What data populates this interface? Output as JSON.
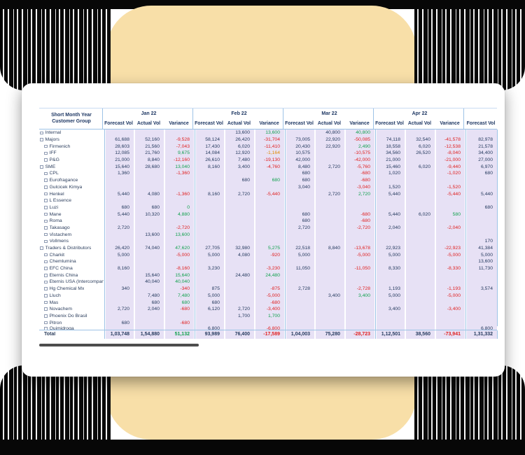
{
  "colors": {
    "panel_tan": "#F8DFA8",
    "cell_lavender": "#E7E1F5",
    "header_navy": "#1F3864",
    "separator_blue": "#9DC3E6",
    "variance_negative": "#E01F1F",
    "variance_positive": "#11A14E",
    "variance_warning": "#E08A00"
  },
  "table": {
    "corner_title_line1": "Short Month Year",
    "corner_title_line2": "Customer Group",
    "months": [
      "Jan 22",
      "Feb 22",
      "Mar 22",
      "Apr 22"
    ],
    "measure_headers": [
      "Forecast Vol",
      "Actual Vol",
      "Variance"
    ],
    "trailing_header": "Forecast Vol",
    "variance_amber": [
      "-1,164"
    ],
    "rows": [
      {
        "label": "Internal",
        "level": 0,
        "cells": [
          "",
          "",
          "",
          "",
          "13,600",
          "13,600",
          "",
          "40,800",
          "40,800",
          "",
          "",
          "",
          ""
        ]
      },
      {
        "label": "Majors",
        "level": 0,
        "cells": [
          "61,688",
          "52,160",
          "-9,528",
          "58,124",
          "26,420",
          "-31,704",
          "73,005",
          "22,920",
          "-50,085",
          "74,118",
          "32,540",
          "-41,578",
          "82,978"
        ]
      },
      {
        "label": "Firmenich",
        "level": 1,
        "cells": [
          "28,603",
          "21,560",
          "-7,043",
          "17,430",
          "6,020",
          "-11,410",
          "20,430",
          "22,920",
          "2,490",
          "18,558",
          "6,020",
          "-12,538",
          "21,578"
        ]
      },
      {
        "label": "IFF",
        "level": 1,
        "cells": [
          "12,085",
          "21,760",
          "9,675",
          "14,084",
          "12,920",
          "-1,164",
          "10,575",
          "",
          "-10,575",
          "34,560",
          "26,520",
          "-8,040",
          "34,400"
        ]
      },
      {
        "label": "P&G",
        "level": 1,
        "cells": [
          "21,000",
          "8,840",
          "-12,160",
          "26,610",
          "7,480",
          "-19,130",
          "42,000",
          "",
          "-42,000",
          "21,000",
          "",
          "-21,000",
          "27,000"
        ]
      },
      {
        "label": "SME",
        "level": 0,
        "cells": [
          "15,640",
          "28,680",
          "13,040",
          "8,160",
          "3,400",
          "-4,760",
          "8,480",
          "2,720",
          "-5,760",
          "15,460",
          "6,020",
          "-9,440",
          "6,970"
        ]
      },
      {
        "label": "CPL",
        "level": 1,
        "cells": [
          "1,360",
          "",
          "-1,360",
          "",
          "",
          "",
          "680",
          "",
          "-680",
          "1,020",
          "",
          "-1,020",
          "680"
        ]
      },
      {
        "label": "Eurofragance",
        "level": 1,
        "cells": [
          "",
          "",
          "",
          "",
          "680",
          "680",
          "680",
          "",
          "-680",
          "",
          "",
          "",
          ""
        ]
      },
      {
        "label": "Gulcicek Kimya",
        "level": 1,
        "cells": [
          "",
          "",
          "",
          "",
          "",
          "",
          "3,040",
          "",
          "-3,040",
          "1,520",
          "",
          "-1,520",
          ""
        ]
      },
      {
        "label": "Henkel",
        "level": 1,
        "cells": [
          "5,440",
          "4,080",
          "-1,360",
          "8,160",
          "2,720",
          "-5,440",
          "",
          "2,720",
          "2,720",
          "5,440",
          "",
          "-5,440",
          "5,440"
        ]
      },
      {
        "label": "L Essence",
        "level": 1,
        "cells": [
          "",
          "",
          "",
          "",
          "",
          "",
          "",
          "",
          "",
          "",
          "",
          "",
          ""
        ]
      },
      {
        "label": "Luzi",
        "level": 1,
        "cells": [
          "680",
          "680",
          "0",
          "",
          "",
          "",
          "",
          "",
          "",
          "",
          "",
          "",
          "680"
        ]
      },
      {
        "label": "Mane",
        "level": 1,
        "cells": [
          "5,440",
          "10,320",
          "4,880",
          "",
          "",
          "",
          "680",
          "",
          "-680",
          "5,440",
          "6,020",
          "580",
          ""
        ]
      },
      {
        "label": "Roma",
        "level": 1,
        "cells": [
          "",
          "",
          "",
          "",
          "",
          "",
          "680",
          "",
          "-680",
          "",
          "",
          "",
          ""
        ]
      },
      {
        "label": "Takasago",
        "level": 1,
        "cells": [
          "2,720",
          "",
          "-2,720",
          "",
          "",
          "",
          "2,720",
          "",
          "-2,720",
          "2,040",
          "",
          "-2,040",
          ""
        ]
      },
      {
        "label": "Vistachem",
        "level": 1,
        "cells": [
          "",
          "13,600",
          "13,600",
          "",
          "",
          "",
          "",
          "",
          "",
          "",
          "",
          "",
          ""
        ]
      },
      {
        "label": "Vollmens",
        "level": 1,
        "cells": [
          "",
          "",
          "",
          "",
          "",
          "",
          "",
          "",
          "",
          "",
          "",
          "",
          "170"
        ]
      },
      {
        "label": "Traders & Distributors",
        "level": 0,
        "cells": [
          "26,420",
          "74,040",
          "47,620",
          "27,705",
          "32,980",
          "5,275",
          "22,518",
          "8,840",
          "-13,678",
          "22,923",
          "",
          "-22,923",
          "41,384"
        ]
      },
      {
        "label": "Charkit",
        "level": 1,
        "cells": [
          "5,000",
          "",
          "-5,000",
          "5,000",
          "4,080",
          "-920",
          "5,000",
          "",
          "-5,000",
          "5,000",
          "",
          "-5,000",
          "5,000"
        ]
      },
      {
        "label": "Chemlumina",
        "level": 1,
        "cells": [
          "",
          "",
          "",
          "",
          "",
          "",
          "",
          "",
          "",
          "",
          "",
          "",
          "13,600"
        ]
      },
      {
        "label": "EFC China",
        "level": 1,
        "cells": [
          "8,160",
          "",
          "-8,160",
          "3,230",
          "",
          "-3,230",
          "11,050",
          "",
          "-11,050",
          "8,330",
          "",
          "-8,330",
          "11,730"
        ]
      },
      {
        "label": "Eternis China",
        "level": 1,
        "cells": [
          "",
          "15,640",
          "15,640",
          "",
          "24,480",
          "24,480",
          "",
          "",
          "",
          "",
          "",
          "",
          ""
        ]
      },
      {
        "label": "Eternis USA (Intercompany)",
        "level": 1,
        "cells": [
          "",
          "40,040",
          "40,040",
          "",
          "",
          "",
          "",
          "",
          "",
          "",
          "",
          "",
          ""
        ]
      },
      {
        "label": "Hg Chemical Mx",
        "level": 1,
        "cells": [
          "340",
          "",
          "-340",
          "875",
          "",
          "-875",
          "2,728",
          "",
          "-2,728",
          "1,193",
          "",
          "-1,193",
          "3,574"
        ]
      },
      {
        "label": "Lluch",
        "level": 1,
        "cells": [
          "",
          "7,480",
          "7,480",
          "5,000",
          "",
          "-5,000",
          "",
          "3,400",
          "3,400",
          "5,000",
          "",
          "-5,000",
          ""
        ]
      },
      {
        "label": "Mas",
        "level": 1,
        "cells": [
          "",
          "680",
          "680",
          "680",
          "",
          "-680",
          "",
          "",
          "",
          "",
          "",
          "",
          ""
        ]
      },
      {
        "label": "Novachem",
        "level": 1,
        "cells": [
          "2,720",
          "2,040",
          "-680",
          "6,120",
          "2,720",
          "-3,400",
          "",
          "",
          "",
          "3,400",
          "",
          "-3,400",
          ""
        ]
      },
      {
        "label": "Phoenix Do Brasil",
        "level": 1,
        "cells": [
          "",
          "",
          "",
          "",
          "1,700",
          "1,700",
          "",
          "",
          "",
          "",
          "",
          "",
          ""
        ]
      },
      {
        "label": "Pitron",
        "level": 1,
        "cells": [
          "680",
          "",
          "-680",
          "",
          "",
          "",
          "",
          "",
          "",
          "",
          "",
          "",
          ""
        ]
      },
      {
        "label": "Quimidroga",
        "level": 1,
        "clipped": true,
        "cells": [
          "",
          "",
          "",
          "6,800",
          "",
          "-6,800",
          "",
          "",
          "",
          "",
          "",
          "",
          "6,800"
        ]
      }
    ],
    "total": {
      "label": "Total",
      "cells": [
        "1,03,748",
        "1,54,880",
        "51,132",
        "93,989",
        "76,400",
        "-17,589",
        "1,04,003",
        "75,280",
        "-28,723",
        "1,12,501",
        "38,560",
        "-73,941",
        "1,31,332"
      ]
    }
  }
}
